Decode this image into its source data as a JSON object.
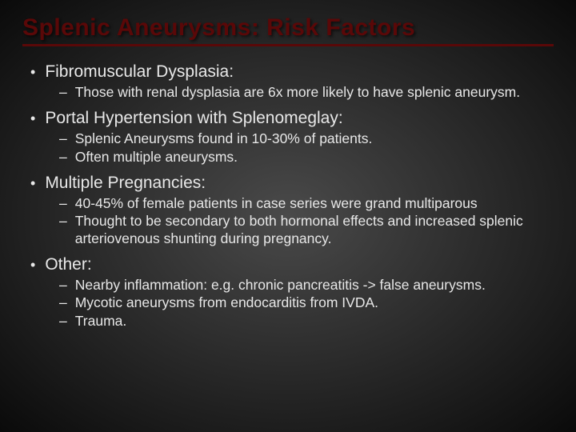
{
  "title": "Splenic Aneurysms: Risk Factors",
  "items": [
    {
      "label": "Fibromuscular Dysplasia:",
      "subs": [
        "Those with renal dysplasia are 6x more likely to have splenic aneurysm."
      ]
    },
    {
      "label": "Portal Hypertension with Splenomeglay:",
      "subs": [
        "Splenic Aneurysms found in 10-30% of patients.",
        "Often multiple aneurysms."
      ]
    },
    {
      "label": "Multiple Pregnancies:",
      "subs": [
        "40-45% of female patients in case series were grand multiparous",
        "Thought to be secondary to both hormonal effects and increased splenic arteriovenous shunting during pregnancy."
      ]
    },
    {
      "label": "Other:",
      "subs": [
        "Nearby inflammation: e.g. chronic pancreatitis -> false aneurysms.",
        "Mycotic aneurysms from endocarditis from IVDA.",
        "Trauma."
      ]
    }
  ],
  "colors": {
    "title_color": "#5a0808",
    "text_color": "#e8e8e8",
    "bg_center": "#4a4a4a",
    "bg_edge": "#0a0a0a"
  },
  "typography": {
    "title_fontsize": 30,
    "main_fontsize": 21,
    "sub_fontsize": 17.5
  }
}
